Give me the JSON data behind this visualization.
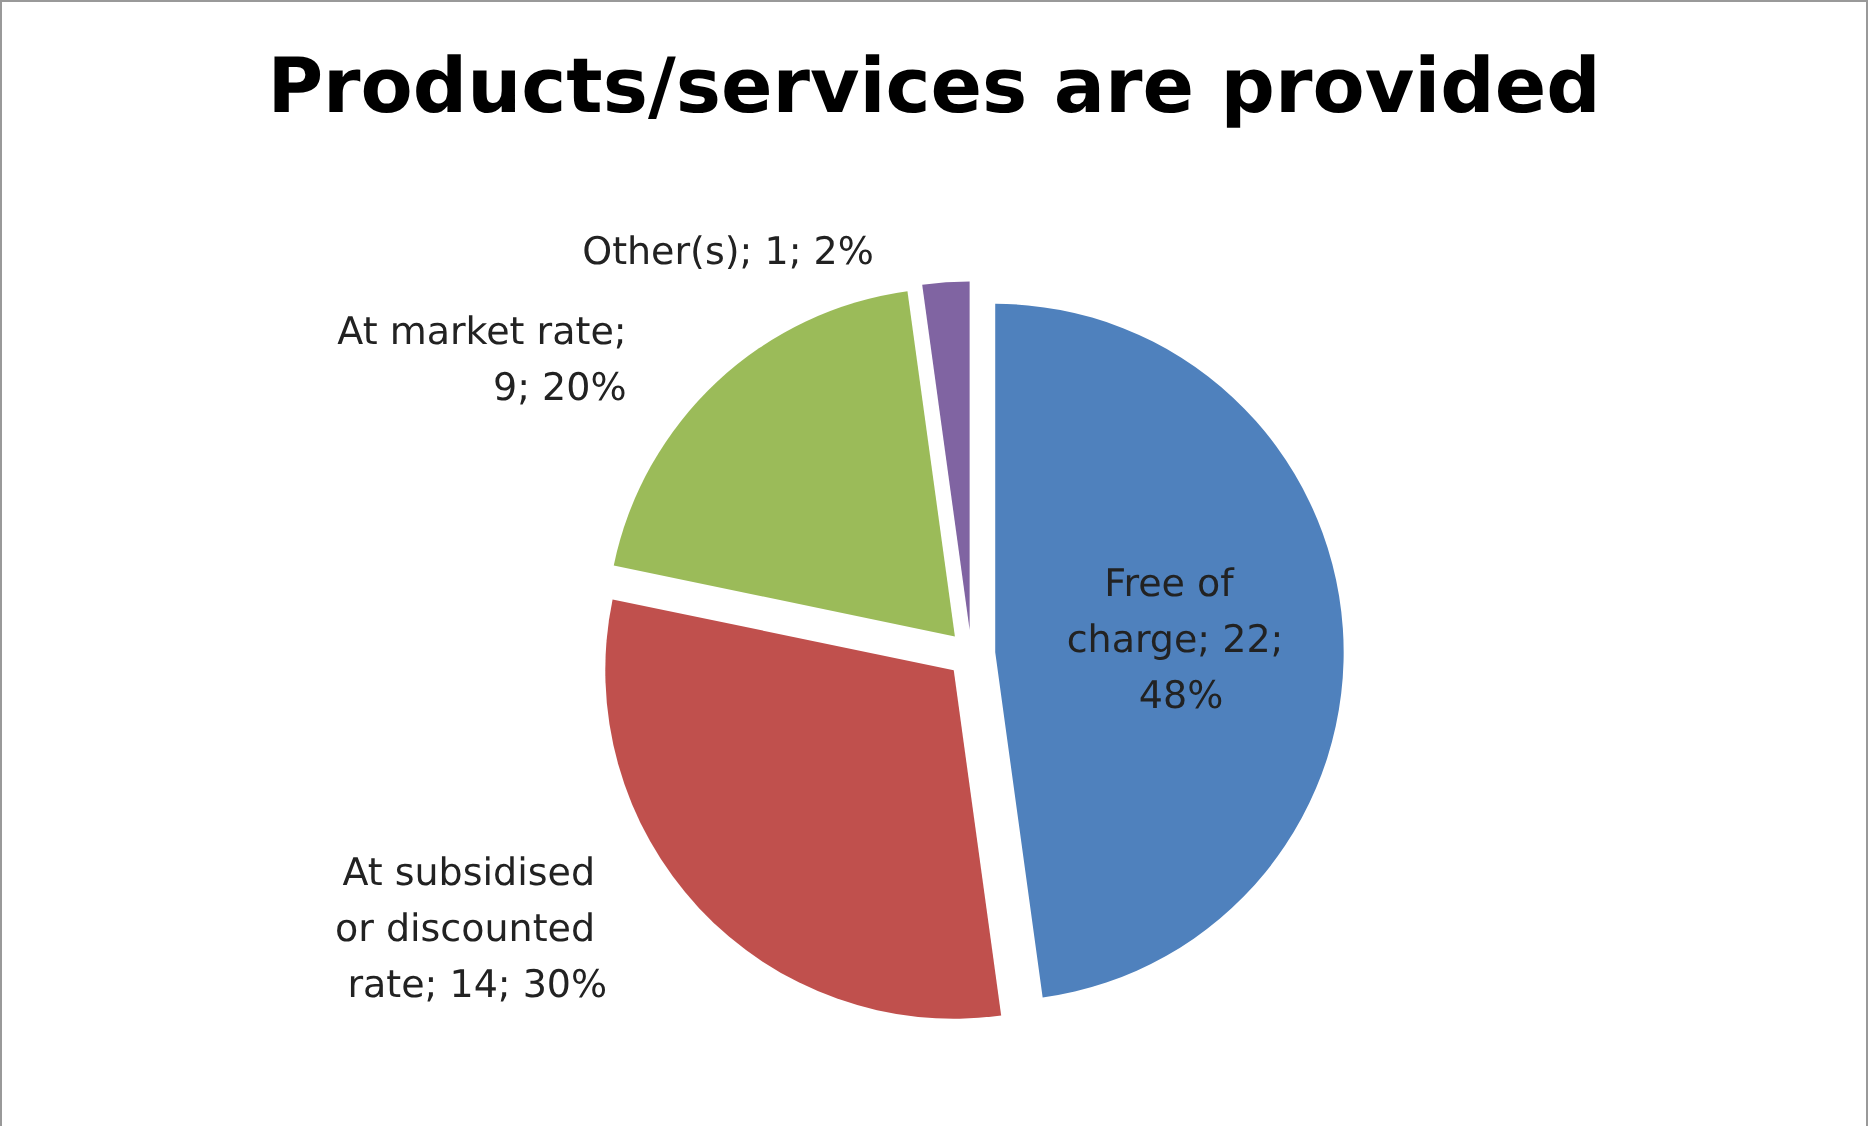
{
  "chart_data": {
    "type": "pie",
    "title": "Products/services are provided",
    "categories": [
      "Free of charge",
      "At subsidised or discounted rate",
      "At market rate",
      "Other(s)"
    ],
    "values": [
      22,
      14,
      9,
      1
    ],
    "value_labels": [
      "; 22; 48%",
      "; 14; 30%",
      "; 9; 20%",
      "; 1; 2%"
    ],
    "colors": [
      "#4f81bd",
      "#c0504d",
      "#9bbb59",
      "#8064a2"
    ],
    "legend": false
  }
}
